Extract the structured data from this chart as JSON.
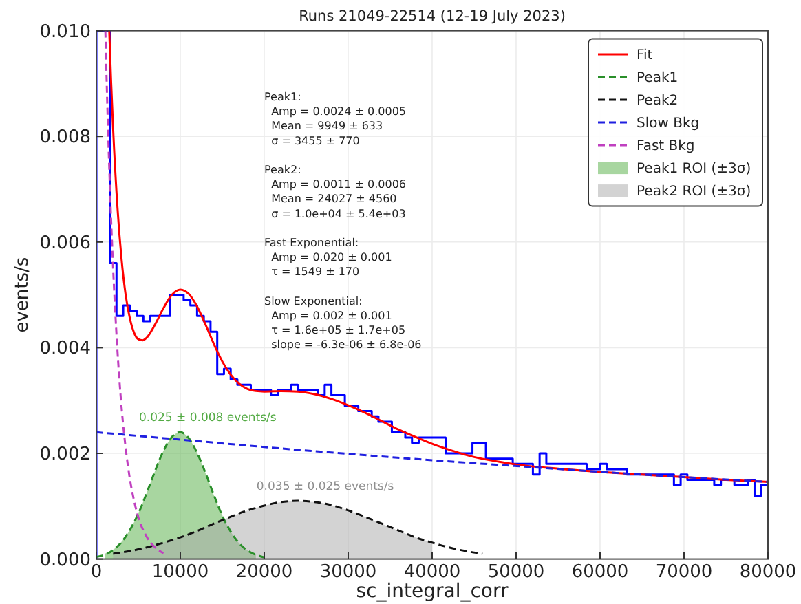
{
  "chart_data": {
    "type": "histogram",
    "title": "Runs 21049-22514 (12-19 July 2023)",
    "xlabel": "sc_integral_corr",
    "ylabel": "events/s",
    "xlim": [
      0,
      80000
    ],
    "ylim": [
      0,
      0.01
    ],
    "xticks": [
      0,
      10000,
      20000,
      30000,
      40000,
      50000,
      60000,
      70000,
      80000
    ],
    "yticks": [
      {
        "value": 0,
        "label": "0.000"
      },
      {
        "value": 0.002,
        "label": "0.002"
      },
      {
        "value": 0.004,
        "label": "0.004"
      },
      {
        "value": 0.006,
        "label": "0.006"
      },
      {
        "value": 0.008,
        "label": "0.008"
      },
      {
        "value": 0.01,
        "label": "0.010"
      }
    ],
    "grid": true,
    "legend": "top right",
    "annotations": [
      "Peak1:\n  Amp = 0.0024 ± 0.0005\n  Mean = 9949 ± 633\n  σ = 3455 ± 770",
      "Peak2:\n  Amp = 0.0011 ± 0.0006\n  Mean = 24027 ± 4560\n  σ = 1.0e+04 ± 5.4e+03",
      "Fast Exponential:\n  Amp = 0.020 ± 0.001\n  τ = 1549 ± 170",
      "Slow Exponential:\n  Amp = 0.002 ± 0.001\n  τ = 1.6e+05 ± 1.7e+05\n  slope = -6.3e-06 ± 6.8e-06",
      {
        "text": "0.025 ± 0.008 events/s",
        "x": 10000,
        "y": 0.0024
      },
      {
        "text": "0.035 ± 0.025 events/s",
        "x": 24000,
        "y": 0.0011
      }
    ],
    "series": [
      {
        "color": "#0000ff",
        "bins": [
          0,
          800,
          1600,
          2400,
          3200,
          4000,
          4800,
          5600,
          6400,
          7200,
          8000,
          8800,
          9600,
          10400,
          11200,
          12000,
          12800,
          13600,
          14400,
          15200,
          16000,
          16800,
          17600,
          18400,
          19200,
          20000,
          20800,
          21600,
          22400,
          23200,
          24000,
          24800,
          25600,
          26400,
          27200,
          28000,
          28800,
          29600,
          30400,
          31200,
          32000,
          32800,
          33600,
          34400,
          35200,
          36000,
          36800,
          37600,
          38400,
          39200,
          40000,
          40800,
          41600,
          42400,
          43200,
          44000,
          44800,
          45600,
          46400,
          47200,
          48000,
          48800,
          49600,
          50400,
          51200,
          52000,
          52800,
          53600,
          54400,
          55200,
          56000,
          56800,
          57600,
          58400,
          59200,
          60000,
          60800,
          61600,
          62400,
          63200,
          64000,
          64800,
          65600,
          66400,
          67200,
          68000,
          68800,
          69600,
          70400,
          71200,
          72000,
          72800,
          73600,
          74400,
          75200,
          76000,
          76800,
          77600,
          78400,
          79200,
          80000
        ],
        "values": [
          0.01,
          0.01,
          0.0056,
          0.0046,
          0.0048,
          0.0047,
          0.0046,
          0.0045,
          0.0046,
          0.0046,
          0.0046,
          0.005,
          0.005,
          0.0049,
          0.0048,
          0.0046,
          0.0045,
          0.0043,
          0.0035,
          0.0036,
          0.0034,
          0.0033,
          0.0033,
          0.0032,
          0.0032,
          0.0032,
          0.0031,
          0.0032,
          0.0032,
          0.0033,
          0.0032,
          0.0032,
          0.0032,
          0.0031,
          0.0033,
          0.0031,
          0.0031,
          0.0029,
          0.0029,
          0.0028,
          0.0028,
          0.0027,
          0.0026,
          0.0026,
          0.0024,
          0.0024,
          0.0023,
          0.0022,
          0.0023,
          0.0023,
          0.0023,
          0.0023,
          0.002,
          0.002,
          0.002,
          0.002,
          0.0022,
          0.0022,
          0.0019,
          0.0019,
          0.0019,
          0.0019,
          0.0018,
          0.0018,
          0.0018,
          0.0016,
          0.002,
          0.0018,
          0.0018,
          0.0018,
          0.0018,
          0.0018,
          0.0018,
          0.0017,
          0.0017,
          0.0018,
          0.0017,
          0.0017,
          0.0017,
          0.0016,
          0.0016,
          0.0016,
          0.0016,
          0.0016,
          0.0016,
          0.0016,
          0.0014,
          0.0016,
          0.0015,
          0.0015,
          0.0015,
          0.0015,
          0.0014,
          0.0015,
          0.0015,
          0.0014,
          0.0014,
          0.0015,
          0.0012,
          0.0014
        ]
      },
      {
        "type": "line",
        "name": "Fit",
        "color": "#ff0000",
        "line_style": "solid",
        "x": [
          1540,
          1750,
          2000,
          2500,
          3000,
          3500,
          4000,
          4500,
          5000,
          5500,
          6000,
          7000,
          8000,
          9000,
          10000,
          11000,
          12000,
          13000,
          14000,
          15000,
          16000,
          17000,
          18000,
          19000,
          20000,
          22000,
          24000,
          26000,
          28000,
          30000,
          32000,
          34000,
          36000,
          38000,
          40000,
          42000,
          45000,
          48000,
          50000,
          55000,
          60000,
          65000,
          70000,
          75000,
          80000
        ],
        "values": [
          0.01,
          0.00907,
          0.00814,
          0.00669,
          0.00568,
          0.00499,
          0.00455,
          0.00428,
          0.00416,
          0.00414,
          0.00419,
          0.00444,
          0.00475,
          0.005,
          0.0051,
          0.00502,
          0.00478,
          0.00444,
          0.00407,
          0.00374,
          0.00349,
          0.00332,
          0.00322,
          0.00318,
          0.00317,
          0.00318,
          0.00317,
          0.00312,
          0.00303,
          0.00291,
          0.00277,
          0.00261,
          0.00245,
          0.00231,
          0.00218,
          0.00207,
          0.00193,
          0.00184,
          0.00179,
          0.00171,
          0.00165,
          0.0016,
          0.00155,
          0.0015,
          0.00146
        ]
      },
      {
        "type": "line",
        "name": "Peak1",
        "color": "#2a8f2a",
        "line_style": "dashed",
        "x": [
          0,
          1000,
          2000,
          3000,
          4000,
          5000,
          6000,
          7000,
          8000,
          9000,
          10000,
          11000,
          12000,
          13000,
          14000,
          15000,
          16000,
          17000,
          18000,
          19000,
          20000
        ],
        "values": [
          4e-05,
          8e-05,
          0.00017,
          0.00032,
          0.00055,
          0.00086,
          0.00125,
          0.00167,
          0.00205,
          0.00231,
          0.0024,
          0.00229,
          0.00201,
          0.00163,
          0.00121,
          0.00082,
          0.00052,
          0.0003,
          0.00016,
          8e-05,
          3e-05
        ]
      },
      {
        "type": "line",
        "name": "Peak2",
        "color": "#111111",
        "line_style": "dashed",
        "x": [
          2000,
          4000,
          6000,
          8000,
          10000,
          12000,
          14000,
          16000,
          18000,
          20000,
          22000,
          24000,
          26000,
          28000,
          30000,
          32000,
          34000,
          36000,
          38000,
          40000,
          42000,
          44000,
          46000
        ],
        "values": [
          0.0001,
          0.00015,
          0.00022,
          0.00031,
          0.00041,
          0.00053,
          0.00067,
          0.0008,
          0.00092,
          0.00101,
          0.00108,
          0.0011,
          0.00108,
          0.00102,
          0.00092,
          0.0008,
          0.00067,
          0.00054,
          0.00041,
          0.00031,
          0.00022,
          0.00015,
          0.0001
        ]
      },
      {
        "type": "line",
        "name": "Slow Bkg",
        "color": "#2020e0",
        "line_style": "dashed",
        "x": [
          0,
          10000,
          20000,
          30000,
          40000,
          50000,
          60000,
          70000,
          80000
        ],
        "values": [
          0.0024,
          0.00226,
          0.00212,
          0.00199,
          0.00187,
          0.00176,
          0.00165,
          0.00155,
          0.00146
        ]
      },
      {
        "type": "line",
        "name": "Fast Bkg",
        "color": "#c040c0",
        "line_style": "dashed",
        "x": [
          1074,
          1250,
          1500,
          1750,
          2000,
          2500,
          3000,
          3500,
          4000,
          4500,
          5000,
          6000,
          7000,
          8000
        ],
        "values": [
          0.01,
          0.00892,
          0.00759,
          0.00646,
          0.0055,
          0.00398,
          0.00288,
          0.00209,
          0.00151,
          0.0011,
          0.00079,
          0.00042,
          0.00022,
          0.00011
        ]
      },
      {
        "type": "area",
        "name": "Peak1 ROI (±3σ)",
        "color": "#a8d6a0",
        "x": [
          1000,
          2500,
          4000,
          5500,
          7000,
          8500,
          10000,
          11500,
          13000,
          14500,
          16000,
          17500,
          19000
        ],
        "values": [
          0.0001,
          0.00024,
          0.00055,
          0.00105,
          0.00167,
          0.0022,
          0.0024,
          0.00217,
          0.00163,
          0.00101,
          0.00052,
          0.00022,
          0.0001
        ]
      },
      {
        "type": "area",
        "name": "Peak2 ROI (±3σ)",
        "color": "#d3d3d3",
        "x": [
          2000,
          5000,
          8000,
          11000,
          14000,
          17000,
          20000,
          23000,
          26000,
          29000,
          32000,
          35000,
          38000,
          40000
        ],
        "values": [
          0.0001,
          0.00018,
          0.00031,
          0.00047,
          0.00067,
          0.00086,
          0.00101,
          0.00109,
          0.00108,
          0.00097,
          0.0008,
          0.0006,
          0.00041,
          0.00031
        ]
      }
    ]
  }
}
